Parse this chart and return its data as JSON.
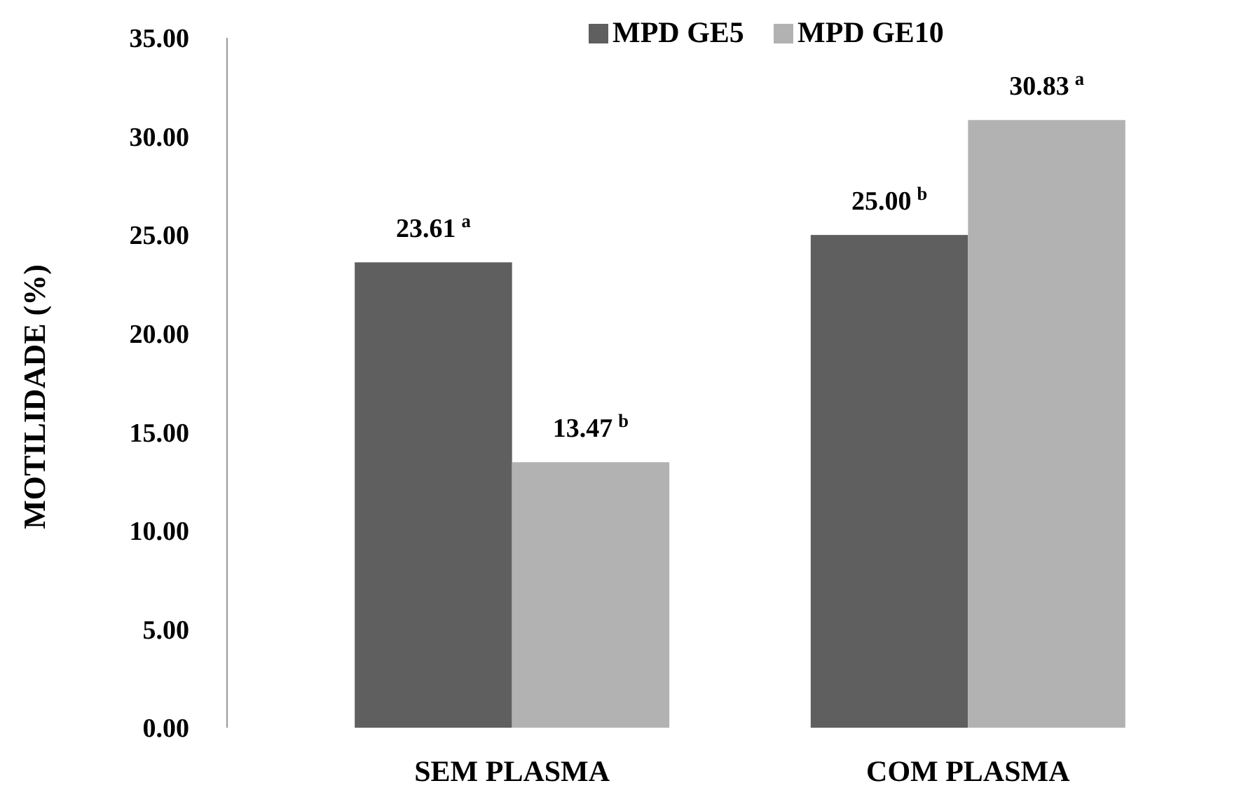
{
  "chart_data": {
    "type": "bar",
    "ylabel": "MOTILIDADE (%)",
    "categories": [
      "SEM PLASMA",
      "COM PLASMA"
    ],
    "series": [
      {
        "name": "MPD GE5",
        "color": "#5f5f5f",
        "values": [
          23.61,
          25.0
        ],
        "value_labels": [
          "23.61$^{a}$",
          "25.00$^{b}$"
        ]
      },
      {
        "name": "MPD GE10",
        "color": "#b2b2b2",
        "values": [
          13.47,
          30.83
        ],
        "value_labels": [
          "13.47$^{b}$",
          "30.83$^{a}$"
        ]
      }
    ],
    "ylim": [
      0,
      35
    ],
    "yticks": [
      {
        "value": 0,
        "label": "0.00"
      },
      {
        "value": 5,
        "label": "5.00"
      },
      {
        "value": 10,
        "label": "10.00"
      },
      {
        "value": 15,
        "label": "15.00"
      },
      {
        "value": 20,
        "label": "20.00"
      },
      {
        "value": 25,
        "label": "25.00"
      },
      {
        "value": 30,
        "label": "30.00"
      },
      {
        "value": 35,
        "label": "35.00"
      }
    ],
    "legend": "top",
    "grid": false
  }
}
